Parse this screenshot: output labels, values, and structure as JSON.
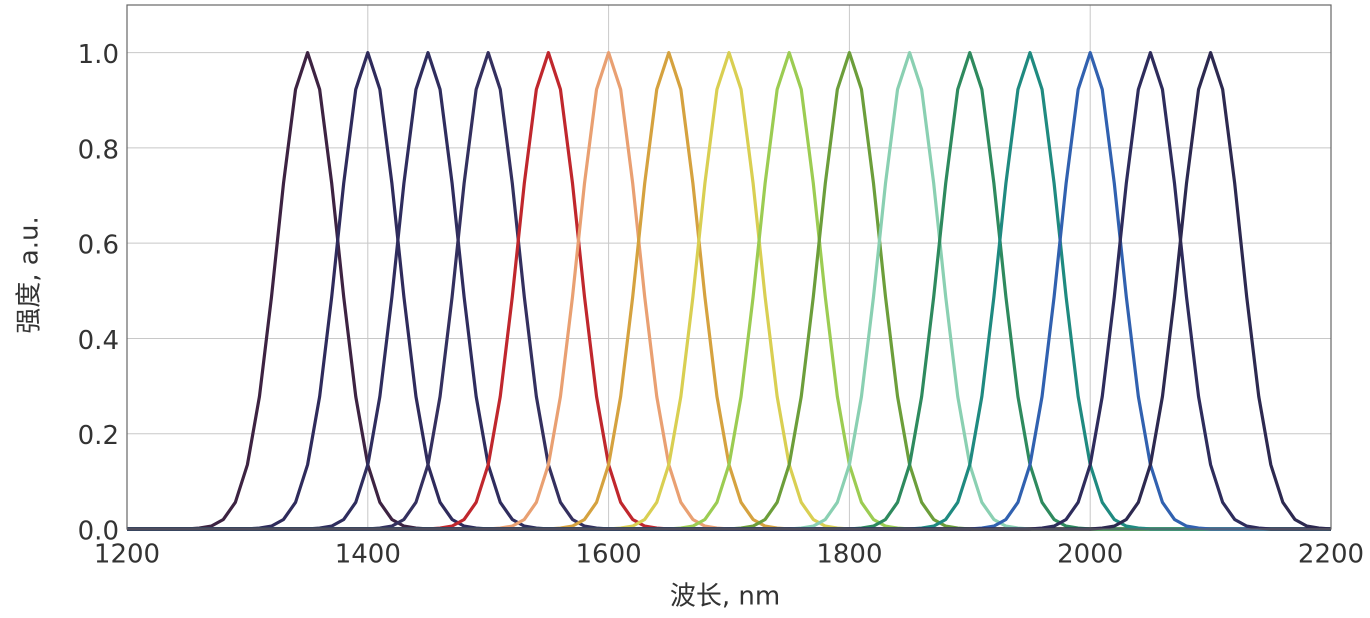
{
  "chart_data": {
    "type": "line",
    "xlabel": "波长, nm",
    "ylabel": "强度, a.u.",
    "xlim": [
      1200,
      2200
    ],
    "xticks": [
      1200,
      1400,
      1600,
      1800,
      2000,
      2200
    ],
    "ylim": [
      0,
      1.1
    ],
    "yticks": [
      {
        "value": 0,
        "label": "0.0"
      },
      0.2,
      0.4,
      0.6,
      0.8,
      {
        "value": 1,
        "label": "1.0"
      }
    ],
    "grid": true,
    "series": [
      {
        "color": "#3d2342",
        "x": [
          1200,
          1250,
          1260,
          1270,
          1280,
          1290,
          1300,
          1310,
          1320,
          1330,
          1340,
          1350,
          1360,
          1370,
          1380,
          1390,
          1400,
          1410,
          1420,
          1430,
          1440,
          1450,
          2200
        ],
        "values": [
          0,
          0,
          0.002,
          0.006,
          0.02,
          0.056,
          0.135,
          0.278,
          0.487,
          0.726,
          0.923,
          1,
          0.923,
          0.726,
          0.487,
          0.278,
          0.135,
          0.056,
          0.02,
          0.006,
          0.002,
          0,
          0
        ]
      },
      {
        "color": "#2f2b5c",
        "x": [
          1200,
          1300,
          1310,
          1320,
          1330,
          1340,
          1350,
          1360,
          1370,
          1380,
          1390,
          1400,
          1410,
          1420,
          1430,
          1440,
          1450,
          1460,
          1470,
          1480,
          1490,
          1500,
          2200
        ],
        "values": [
          0,
          0,
          0.002,
          0.006,
          0.02,
          0.056,
          0.135,
          0.278,
          0.487,
          0.726,
          0.923,
          1,
          0.923,
          0.726,
          0.487,
          0.278,
          0.135,
          0.056,
          0.02,
          0.006,
          0.002,
          0,
          0
        ]
      },
      {
        "color": "#2f2d5e",
        "x": [
          1200,
          1350,
          1360,
          1370,
          1380,
          1390,
          1400,
          1410,
          1420,
          1430,
          1440,
          1450,
          1460,
          1470,
          1480,
          1490,
          1500,
          1510,
          1520,
          1530,
          1540,
          1550,
          2200
        ],
        "values": [
          0,
          0,
          0.002,
          0.006,
          0.02,
          0.056,
          0.135,
          0.278,
          0.487,
          0.726,
          0.923,
          1,
          0.923,
          0.726,
          0.487,
          0.278,
          0.135,
          0.056,
          0.02,
          0.006,
          0.002,
          0,
          0
        ]
      },
      {
        "color": "#34305f",
        "x": [
          1200,
          1400,
          1410,
          1420,
          1430,
          1440,
          1450,
          1460,
          1470,
          1480,
          1490,
          1500,
          1510,
          1520,
          1530,
          1540,
          1550,
          1560,
          1570,
          1580,
          1590,
          1600,
          2200
        ],
        "values": [
          0,
          0,
          0.002,
          0.006,
          0.02,
          0.056,
          0.135,
          0.278,
          0.487,
          0.726,
          0.923,
          1,
          0.923,
          0.726,
          0.487,
          0.278,
          0.135,
          0.056,
          0.02,
          0.006,
          0.002,
          0,
          0
        ]
      },
      {
        "color": "#c0272d",
        "x": [
          1200,
          1450,
          1460,
          1470,
          1480,
          1490,
          1500,
          1510,
          1520,
          1530,
          1540,
          1550,
          1560,
          1570,
          1580,
          1590,
          1600,
          1610,
          1620,
          1630,
          1640,
          1650,
          2200
        ],
        "values": [
          0,
          0,
          0.002,
          0.006,
          0.02,
          0.056,
          0.135,
          0.278,
          0.487,
          0.726,
          0.923,
          1,
          0.923,
          0.726,
          0.487,
          0.278,
          0.135,
          0.056,
          0.02,
          0.006,
          0.002,
          0,
          0
        ]
      },
      {
        "color": "#e9a072",
        "x": [
          1200,
          1500,
          1510,
          1520,
          1530,
          1540,
          1550,
          1560,
          1570,
          1580,
          1590,
          1600,
          1610,
          1620,
          1630,
          1640,
          1650,
          1660,
          1670,
          1680,
          1690,
          1700,
          2200
        ],
        "values": [
          0,
          0,
          0.002,
          0.006,
          0.02,
          0.056,
          0.135,
          0.278,
          0.487,
          0.726,
          0.923,
          1,
          0.923,
          0.726,
          0.487,
          0.278,
          0.135,
          0.056,
          0.02,
          0.006,
          0.002,
          0,
          0
        ]
      },
      {
        "color": "#d5a23f",
        "x": [
          1200,
          1550,
          1560,
          1570,
          1580,
          1590,
          1600,
          1610,
          1620,
          1630,
          1640,
          1650,
          1660,
          1670,
          1680,
          1690,
          1700,
          1710,
          1720,
          1730,
          1740,
          1750,
          2200
        ],
        "values": [
          0,
          0,
          0.002,
          0.006,
          0.02,
          0.056,
          0.135,
          0.278,
          0.487,
          0.726,
          0.923,
          1,
          0.923,
          0.726,
          0.487,
          0.278,
          0.135,
          0.056,
          0.02,
          0.006,
          0.002,
          0,
          0
        ]
      },
      {
        "color": "#d9cf52",
        "x": [
          1200,
          1600,
          1610,
          1620,
          1630,
          1640,
          1650,
          1660,
          1670,
          1680,
          1690,
          1700,
          1710,
          1720,
          1730,
          1740,
          1750,
          1760,
          1770,
          1780,
          1790,
          1800,
          2200
        ],
        "values": [
          0,
          0,
          0.002,
          0.006,
          0.02,
          0.056,
          0.135,
          0.278,
          0.487,
          0.726,
          0.923,
          1,
          0.923,
          0.726,
          0.487,
          0.278,
          0.135,
          0.056,
          0.02,
          0.006,
          0.002,
          0,
          0
        ]
      },
      {
        "color": "#9ccc52",
        "x": [
          1200,
          1650,
          1660,
          1670,
          1680,
          1690,
          1700,
          1710,
          1720,
          1730,
          1740,
          1750,
          1760,
          1770,
          1780,
          1790,
          1800,
          1810,
          1820,
          1830,
          1840,
          1850,
          2200
        ],
        "values": [
          0,
          0,
          0.002,
          0.006,
          0.02,
          0.056,
          0.135,
          0.278,
          0.487,
          0.726,
          0.923,
          1,
          0.923,
          0.726,
          0.487,
          0.278,
          0.135,
          0.056,
          0.02,
          0.006,
          0.002,
          0,
          0
        ]
      },
      {
        "color": "#6c9e3a",
        "x": [
          1200,
          1700,
          1710,
          1720,
          1730,
          1740,
          1750,
          1760,
          1770,
          1780,
          1790,
          1800,
          1810,
          1820,
          1830,
          1840,
          1850,
          1860,
          1870,
          1880,
          1890,
          1900,
          2200
        ],
        "values": [
          0,
          0,
          0.002,
          0.006,
          0.02,
          0.056,
          0.135,
          0.278,
          0.487,
          0.726,
          0.923,
          1,
          0.923,
          0.726,
          0.487,
          0.278,
          0.135,
          0.056,
          0.02,
          0.006,
          0.002,
          0,
          0
        ]
      },
      {
        "color": "#8ad0b2",
        "x": [
          1200,
          1750,
          1760,
          1770,
          1780,
          1790,
          1800,
          1810,
          1820,
          1830,
          1840,
          1850,
          1860,
          1870,
          1880,
          1890,
          1900,
          1910,
          1920,
          1930,
          1940,
          1950,
          2200
        ],
        "values": [
          0,
          0,
          0.002,
          0.006,
          0.02,
          0.056,
          0.135,
          0.278,
          0.487,
          0.726,
          0.923,
          1,
          0.923,
          0.726,
          0.487,
          0.278,
          0.135,
          0.056,
          0.02,
          0.006,
          0.002,
          0,
          0
        ]
      },
      {
        "color": "#2e8a5e",
        "x": [
          1200,
          1800,
          1810,
          1820,
          1830,
          1840,
          1850,
          1860,
          1870,
          1880,
          1890,
          1900,
          1910,
          1920,
          1930,
          1940,
          1950,
          1960,
          1970,
          1980,
          1990,
          2000,
          2200
        ],
        "values": [
          0,
          0,
          0.002,
          0.006,
          0.02,
          0.056,
          0.135,
          0.278,
          0.487,
          0.726,
          0.923,
          1,
          0.923,
          0.726,
          0.487,
          0.278,
          0.135,
          0.056,
          0.02,
          0.006,
          0.002,
          0,
          0
        ]
      },
      {
        "color": "#1f8a80",
        "x": [
          1200,
          1850,
          1860,
          1870,
          1880,
          1890,
          1900,
          1910,
          1920,
          1930,
          1940,
          1950,
          1960,
          1970,
          1980,
          1990,
          2000,
          2010,
          2020,
          2030,
          2040,
          2050,
          2200
        ],
        "values": [
          0,
          0,
          0.002,
          0.006,
          0.02,
          0.056,
          0.135,
          0.278,
          0.487,
          0.726,
          0.923,
          1,
          0.923,
          0.726,
          0.487,
          0.278,
          0.135,
          0.056,
          0.02,
          0.006,
          0.002,
          0,
          0
        ]
      },
      {
        "color": "#3161b0",
        "x": [
          1200,
          1900,
          1910,
          1920,
          1930,
          1940,
          1950,
          1960,
          1970,
          1980,
          1990,
          2000,
          2010,
          2020,
          2030,
          2040,
          2050,
          2060,
          2070,
          2080,
          2090,
          2100,
          2200
        ],
        "values": [
          0,
          0,
          0.002,
          0.006,
          0.02,
          0.056,
          0.135,
          0.278,
          0.487,
          0.726,
          0.923,
          1,
          0.923,
          0.726,
          0.487,
          0.278,
          0.135,
          0.056,
          0.02,
          0.006,
          0.002,
          0,
          0
        ]
      },
      {
        "color": "#2e2c5c",
        "x": [
          1200,
          1950,
          1960,
          1970,
          1980,
          1990,
          2000,
          2010,
          2020,
          2030,
          2040,
          2050,
          2060,
          2070,
          2080,
          2090,
          2100,
          2110,
          2120,
          2130,
          2140,
          2150,
          2200
        ],
        "values": [
          0,
          0,
          0.002,
          0.006,
          0.02,
          0.056,
          0.135,
          0.278,
          0.487,
          0.726,
          0.923,
          1,
          0.923,
          0.726,
          0.487,
          0.278,
          0.135,
          0.056,
          0.02,
          0.006,
          0.002,
          0,
          0
        ]
      },
      {
        "color": "#2d2950",
        "x": [
          1200,
          2000,
          2010,
          2020,
          2030,
          2040,
          2050,
          2060,
          2070,
          2080,
          2090,
          2100,
          2110,
          2120,
          2130,
          2140,
          2150,
          2160,
          2170,
          2180,
          2190,
          2200
        ],
        "values": [
          0,
          0,
          0.002,
          0.006,
          0.02,
          0.056,
          0.135,
          0.278,
          0.487,
          0.726,
          0.923,
          1,
          0.923,
          0.726,
          0.487,
          0.278,
          0.135,
          0.056,
          0.02,
          0.006,
          0.002,
          0
        ]
      }
    ]
  }
}
